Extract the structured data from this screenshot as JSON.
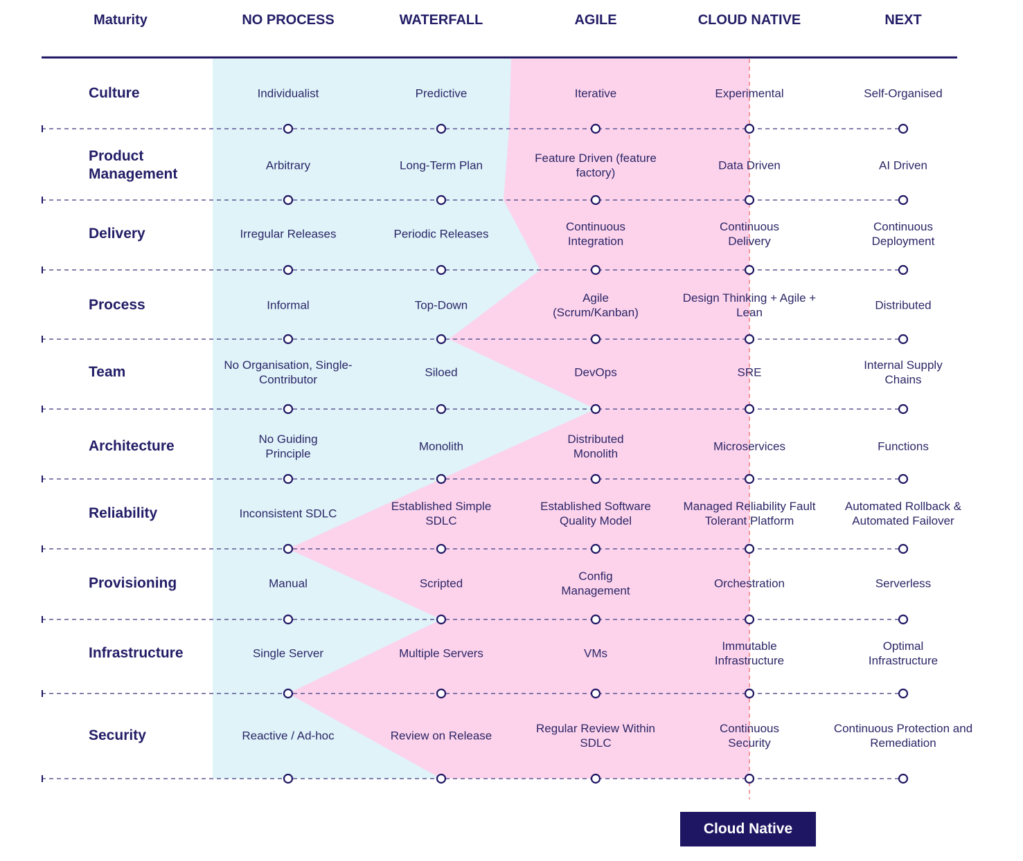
{
  "colors": {
    "navy": "#1e1663",
    "blue_zone": "#dff3f9",
    "pink_zone": "#fdd3ec",
    "marker_line": "#f08080"
  },
  "header": {
    "maturity": "Maturity",
    "columns": [
      "NO PROCESS",
      "WATERFALL",
      "AGILE",
      "CLOUD NATIVE",
      "NEXT"
    ]
  },
  "rows": [
    {
      "label": "Culture",
      "cells": [
        "Individualist",
        "Predictive",
        "Iterative",
        "Experimental",
        "Self-Organised"
      ]
    },
    {
      "label": "Product Management",
      "cells": [
        "Arbitrary",
        "Long-Term Plan",
        "Feature Driven (feature factory)",
        "Data Driven",
        "AI Driven"
      ]
    },
    {
      "label": "Delivery",
      "cells": [
        "Irregular Releases",
        "Periodic Releases",
        "Continuous Integration",
        "Continuous Delivery",
        "Continuous Deployment"
      ]
    },
    {
      "label": "Process",
      "cells": [
        "Informal",
        "Top-Down",
        "Agile (Scrum/Kanban)",
        "Design Thinking + Agile + Lean",
        "Distributed"
      ]
    },
    {
      "label": "Team",
      "cells": [
        "No Organisation, Single-Contributor",
        "Siloed",
        "DevOps",
        "SRE",
        "Internal Supply Chains"
      ]
    },
    {
      "label": "Architecture",
      "cells": [
        "No Guiding Principle",
        "Monolith",
        "Distributed Monolith",
        "Microservices",
        "Functions"
      ]
    },
    {
      "label": "Reliability",
      "cells": [
        "Inconsistent SDLC",
        "Established Simple SDLC",
        "Established Software Quality Model",
        "Managed Reliability Fault Tolerant Platform",
        "Automated Rollback & Automated Failover"
      ]
    },
    {
      "label": "Provisioning",
      "cells": [
        "Manual",
        "Scripted",
        "Config Management",
        "Orchestration",
        "Serverless"
      ]
    },
    {
      "label": "Infrastructure",
      "cells": [
        "Single Server",
        "Multiple Servers",
        "VMs",
        "Immutable Infrastructure",
        "Optimal Infrastructure"
      ]
    },
    {
      "label": "Security",
      "cells": [
        "Reactive / Ad-hoc",
        "Review on Release",
        "Regular Review Within SDLC",
        "Continuous Security",
        "Continuous Protection and Remediation"
      ]
    }
  ],
  "marker_button": {
    "label": "Cloud Native"
  }
}
